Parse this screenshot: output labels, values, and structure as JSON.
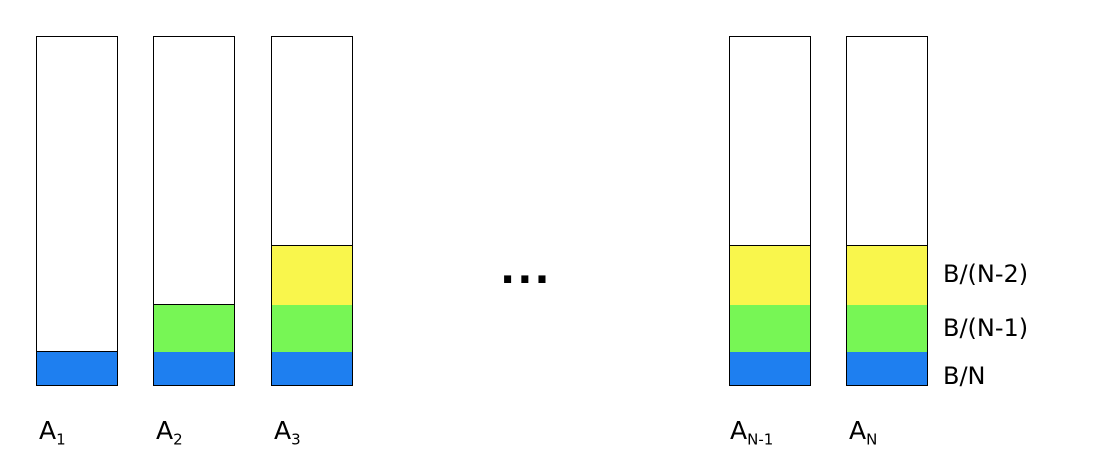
{
  "columns": [
    {
      "label_main": "A",
      "label_sub": "1",
      "segments": [
        "blue"
      ]
    },
    {
      "label_main": "A",
      "label_sub": "2",
      "segments": [
        "blue",
        "green"
      ]
    },
    {
      "label_main": "A",
      "label_sub": "3",
      "segments": [
        "blue",
        "green",
        "yellow"
      ]
    },
    {
      "label_main": "A",
      "label_sub": "N-1",
      "segments": [
        "blue",
        "green",
        "yellow"
      ]
    },
    {
      "label_main": "A",
      "label_sub": "N",
      "segments": [
        "blue",
        "green",
        "yellow"
      ]
    }
  ],
  "ellipsis": "...",
  "segment_labels": {
    "yellow": "B/(N-2)",
    "green": "B/(N-1)",
    "blue": "B/N"
  },
  "colors": {
    "blue": "#1e7ff0",
    "green": "#77f655",
    "yellow": "#f9f64c"
  }
}
